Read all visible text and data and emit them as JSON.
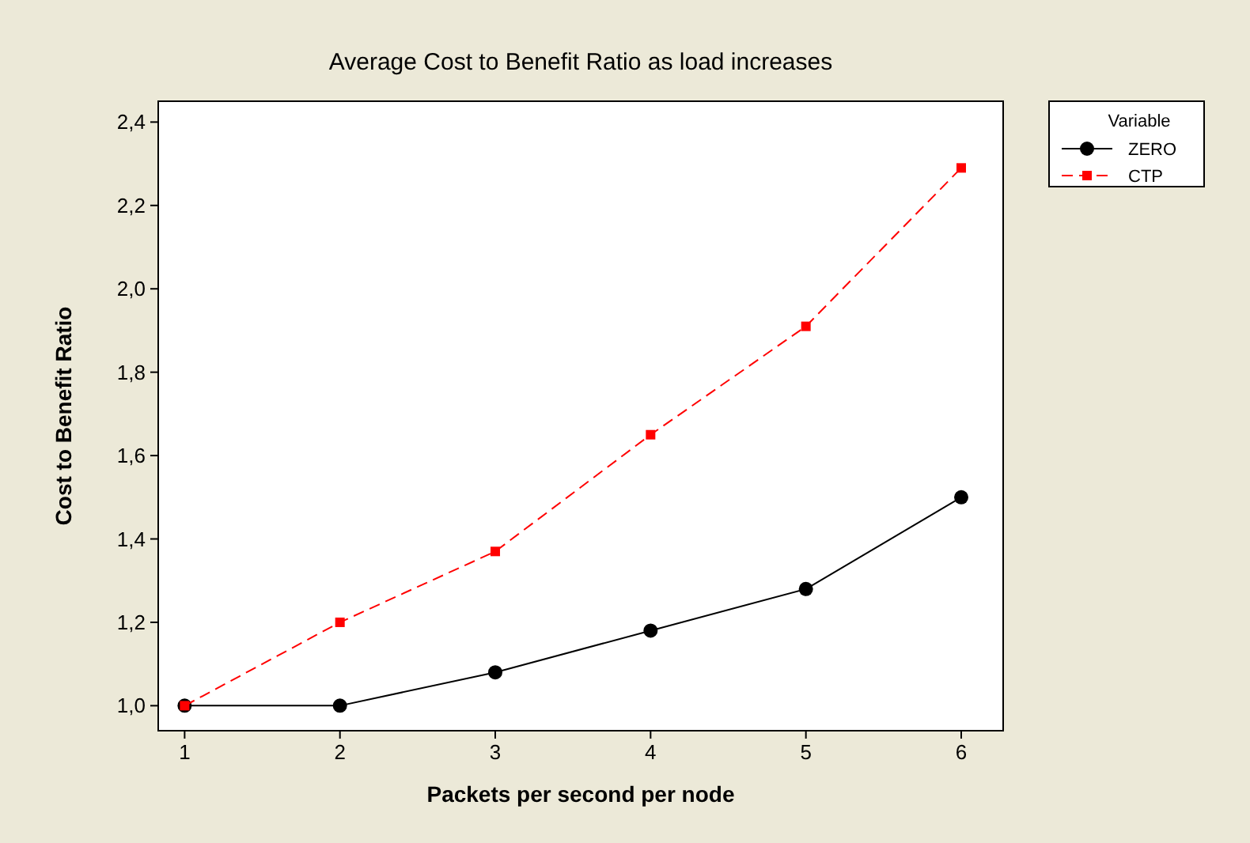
{
  "chart_data": {
    "type": "line",
    "title": "Average Cost to Benefit Ratio as load increases",
    "xlabel": "Packets per second per node",
    "ylabel": "Cost to Benefit Ratio",
    "legend_title": "Variable",
    "legend": "right",
    "grid": false,
    "x": [
      1,
      2,
      3,
      4,
      5,
      6
    ],
    "xlim": [
      0.83,
      6.27
    ],
    "xticks": [
      1,
      2,
      3,
      4,
      5,
      6
    ],
    "ylim": [
      0.94,
      2.45
    ],
    "yticks": [
      {
        "value": 1.0,
        "label": "1,0"
      },
      {
        "value": 1.2,
        "label": "1,2"
      },
      {
        "value": 1.4,
        "label": "1,4"
      },
      {
        "value": 1.6,
        "label": "1,6"
      },
      {
        "value": 1.8,
        "label": "1,8"
      },
      {
        "value": 2.0,
        "label": "2,0"
      },
      {
        "value": 2.2,
        "label": "2,2"
      },
      {
        "value": 2.4,
        "label": "2,4"
      }
    ],
    "series": [
      {
        "name": "ZERO",
        "color": "#000000",
        "marker": "circle",
        "line_style": "solid",
        "values": [
          1.0,
          1.0,
          1.08,
          1.18,
          1.28,
          1.5
        ]
      },
      {
        "name": "CTP",
        "color": "#ff0000",
        "marker": "square",
        "line_style": "dashed",
        "values": [
          1.0,
          1.2,
          1.37,
          1.65,
          1.91,
          2.29
        ]
      }
    ]
  }
}
